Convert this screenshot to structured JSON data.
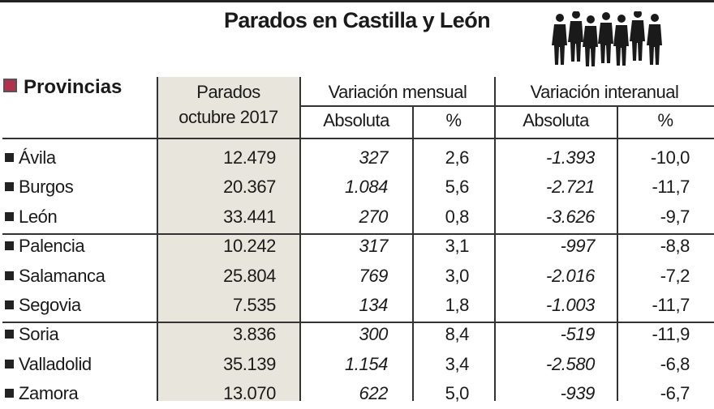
{
  "title": "Parados en Castilla y León",
  "header": {
    "provinces": "Provincias",
    "parados_line1": "Parados",
    "parados_line2": "octubre 2017",
    "monthly": "Variación mensual",
    "yearly": "Variación interanual",
    "abs": "Absoluta",
    "pct": "%"
  },
  "colors": {
    "accent": "#b5304a",
    "shade": "#e8e6dc"
  },
  "chart_data": {
    "type": "table",
    "title": "Parados en Castilla y León",
    "columns": [
      "Provincias",
      "Parados octubre 2017",
      "Variación mensual Absoluta",
      "Variación mensual %",
      "Variación interanual Absoluta",
      "Variación interanual %"
    ],
    "rows": [
      [
        "Ávila",
        "12.479",
        "327",
        "2,6",
        "-1.393",
        "-10,0"
      ],
      [
        "Burgos",
        "20.367",
        "1.084",
        "5,6",
        "-2.721",
        "-11,7"
      ],
      [
        "León",
        "33.441",
        "270",
        "0,8",
        "-3.626",
        "-9,7"
      ],
      [
        "Palencia",
        "10.242",
        "317",
        "3,1",
        "-997",
        "-8,8"
      ],
      [
        "Salamanca",
        "25.804",
        "769",
        "3,0",
        "-2.016",
        "-7,2"
      ],
      [
        "Segovia",
        "7.535",
        "134",
        "1,8",
        "-1.003",
        "-11,7"
      ],
      [
        "Soria",
        "3.836",
        "300",
        "8,4",
        "-519",
        "-11,9"
      ],
      [
        "Valladolid",
        "35.139",
        "1.154",
        "3,4",
        "-2.580",
        "-6,8"
      ],
      [
        "Zamora",
        "13.070",
        "622",
        "5,0",
        "-939",
        "-6,7"
      ]
    ]
  }
}
